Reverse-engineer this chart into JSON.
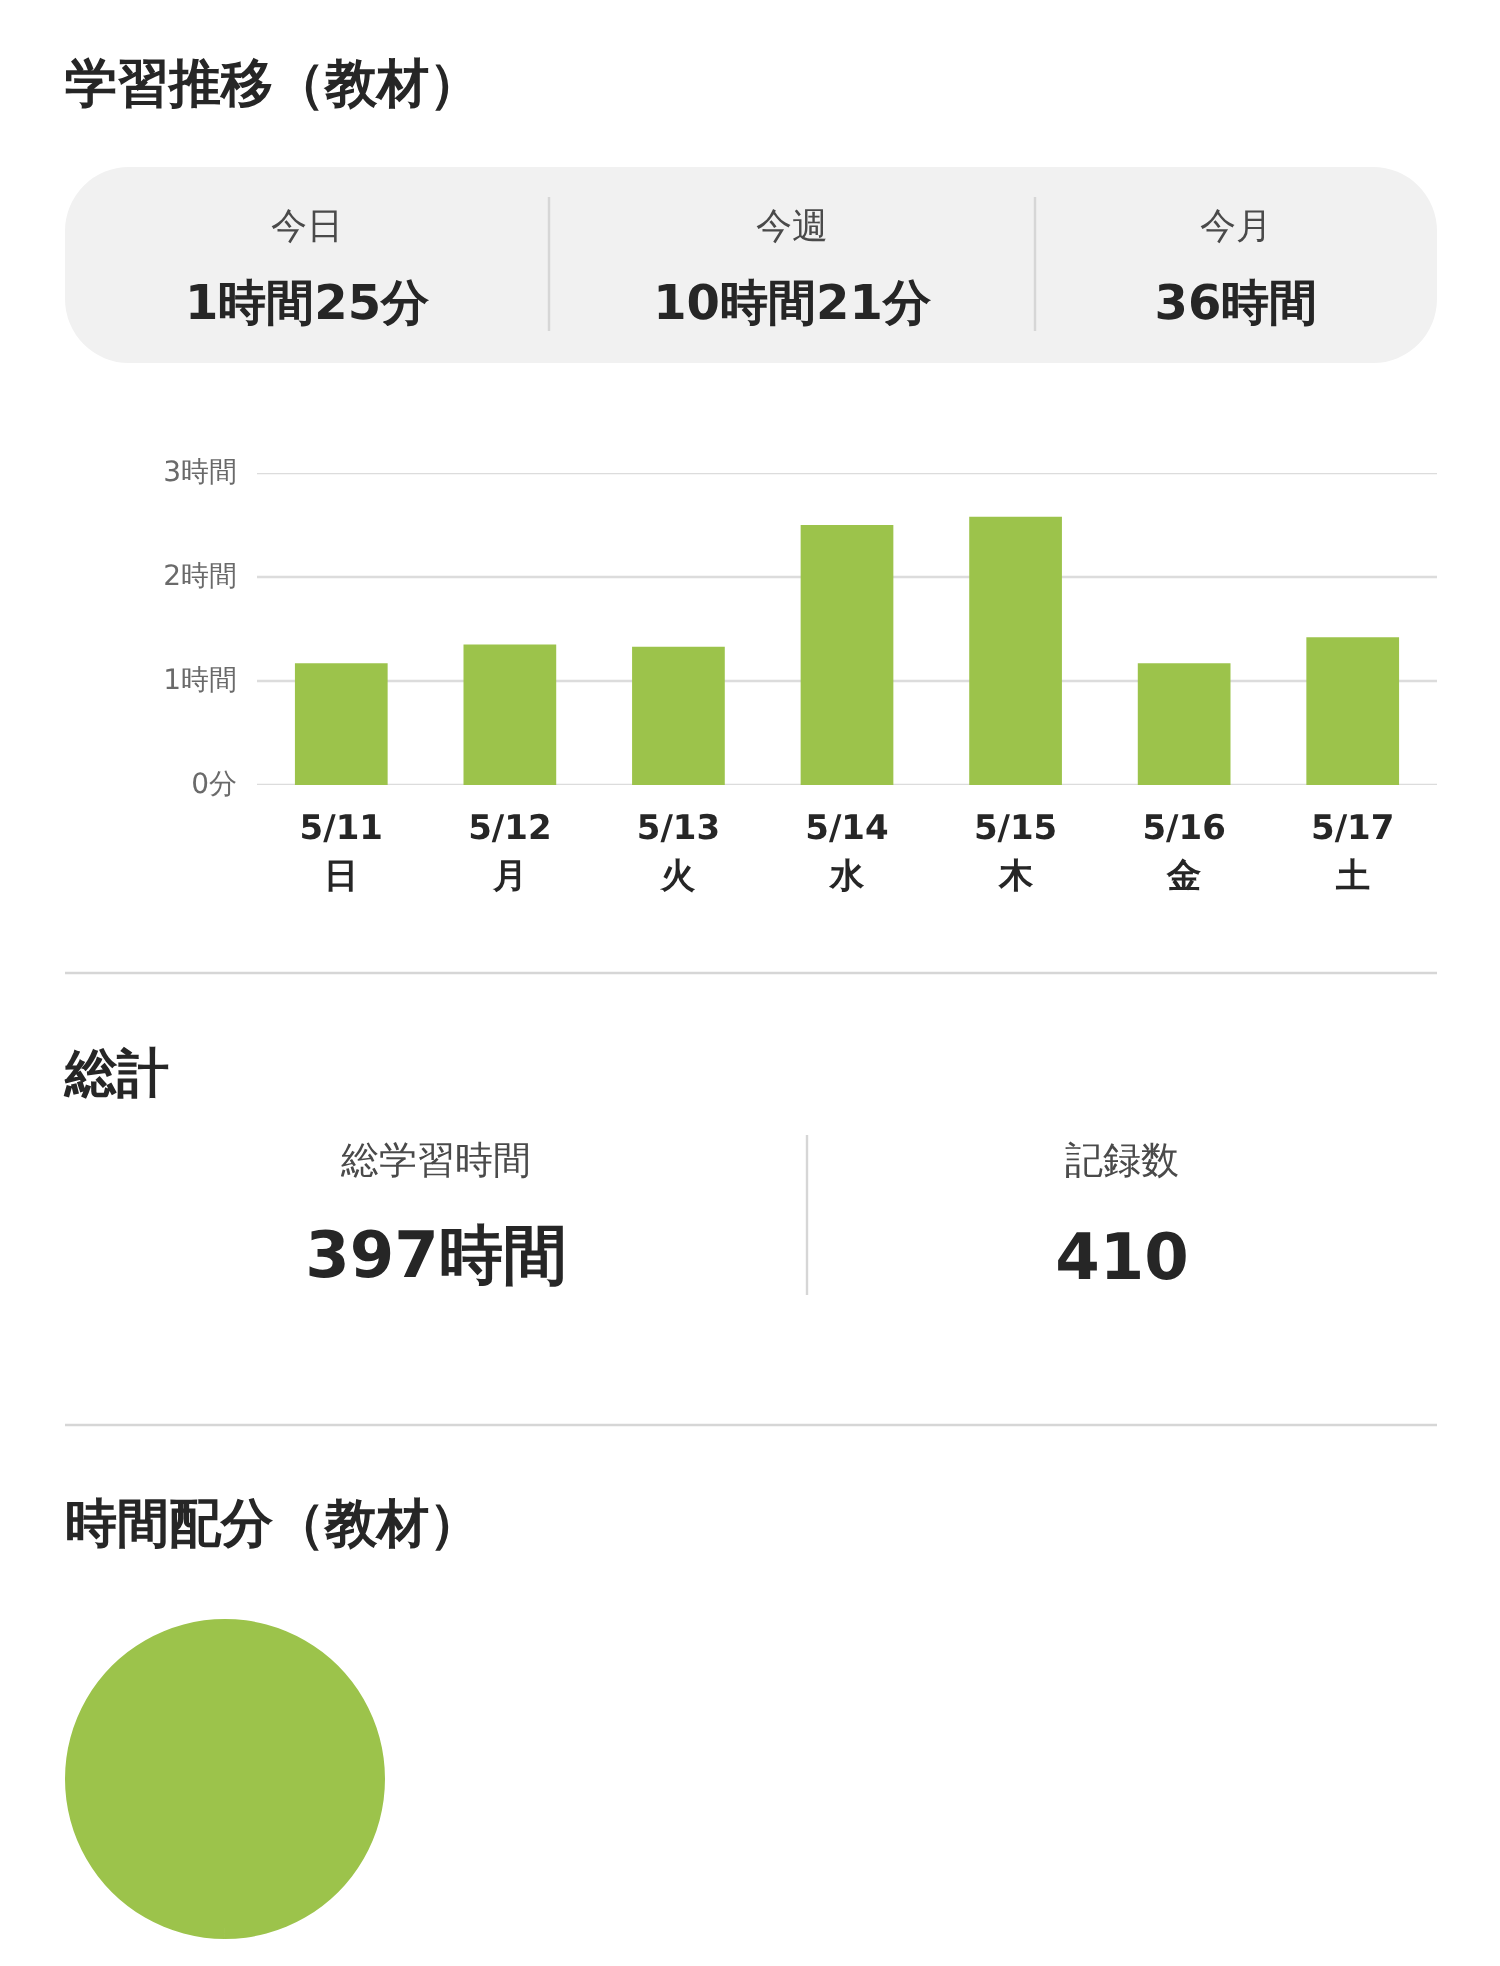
{
  "chart_data": [
    {
      "type": "other",
      "title": "学習推移（教材）",
      "annotations": [
        "今日",
        "1時間25分",
        "今週",
        "10時間21分",
        "今月",
        "36時間"
      ]
    },
    {
      "type": "bar",
      "categories": [
        "5/11\n日",
        "5/12\n月",
        "5/13\n火",
        "5/14\n水",
        "5/15\n木",
        "5/16\n金",
        "5/17\n土"
      ],
      "values": [
        1.17,
        1.35,
        1.33,
        2.5,
        2.58,
        1.17,
        1.42
      ],
      "color": "#9cc34b",
      "ylim": [
        0,
        3
      ],
      "yticks": [
        {
          "value": 0,
          "label": "0分"
        },
        {
          "value": 1,
          "label": "1時間"
        },
        {
          "value": 2,
          "label": "2時間"
        },
        {
          "value": 3,
          "label": "3時間"
        }
      ],
      "grid": "y"
    },
    {
      "type": "other",
      "title": "総計",
      "annotations": [
        "総学習時間",
        "397時間",
        "記録数",
        "410"
      ]
    },
    {
      "type": "pie",
      "title": "時間配分（教材）",
      "categories": [
        null
      ],
      "values": [
        100
      ],
      "colors": [
        "#9cc34b"
      ]
    }
  ]
}
